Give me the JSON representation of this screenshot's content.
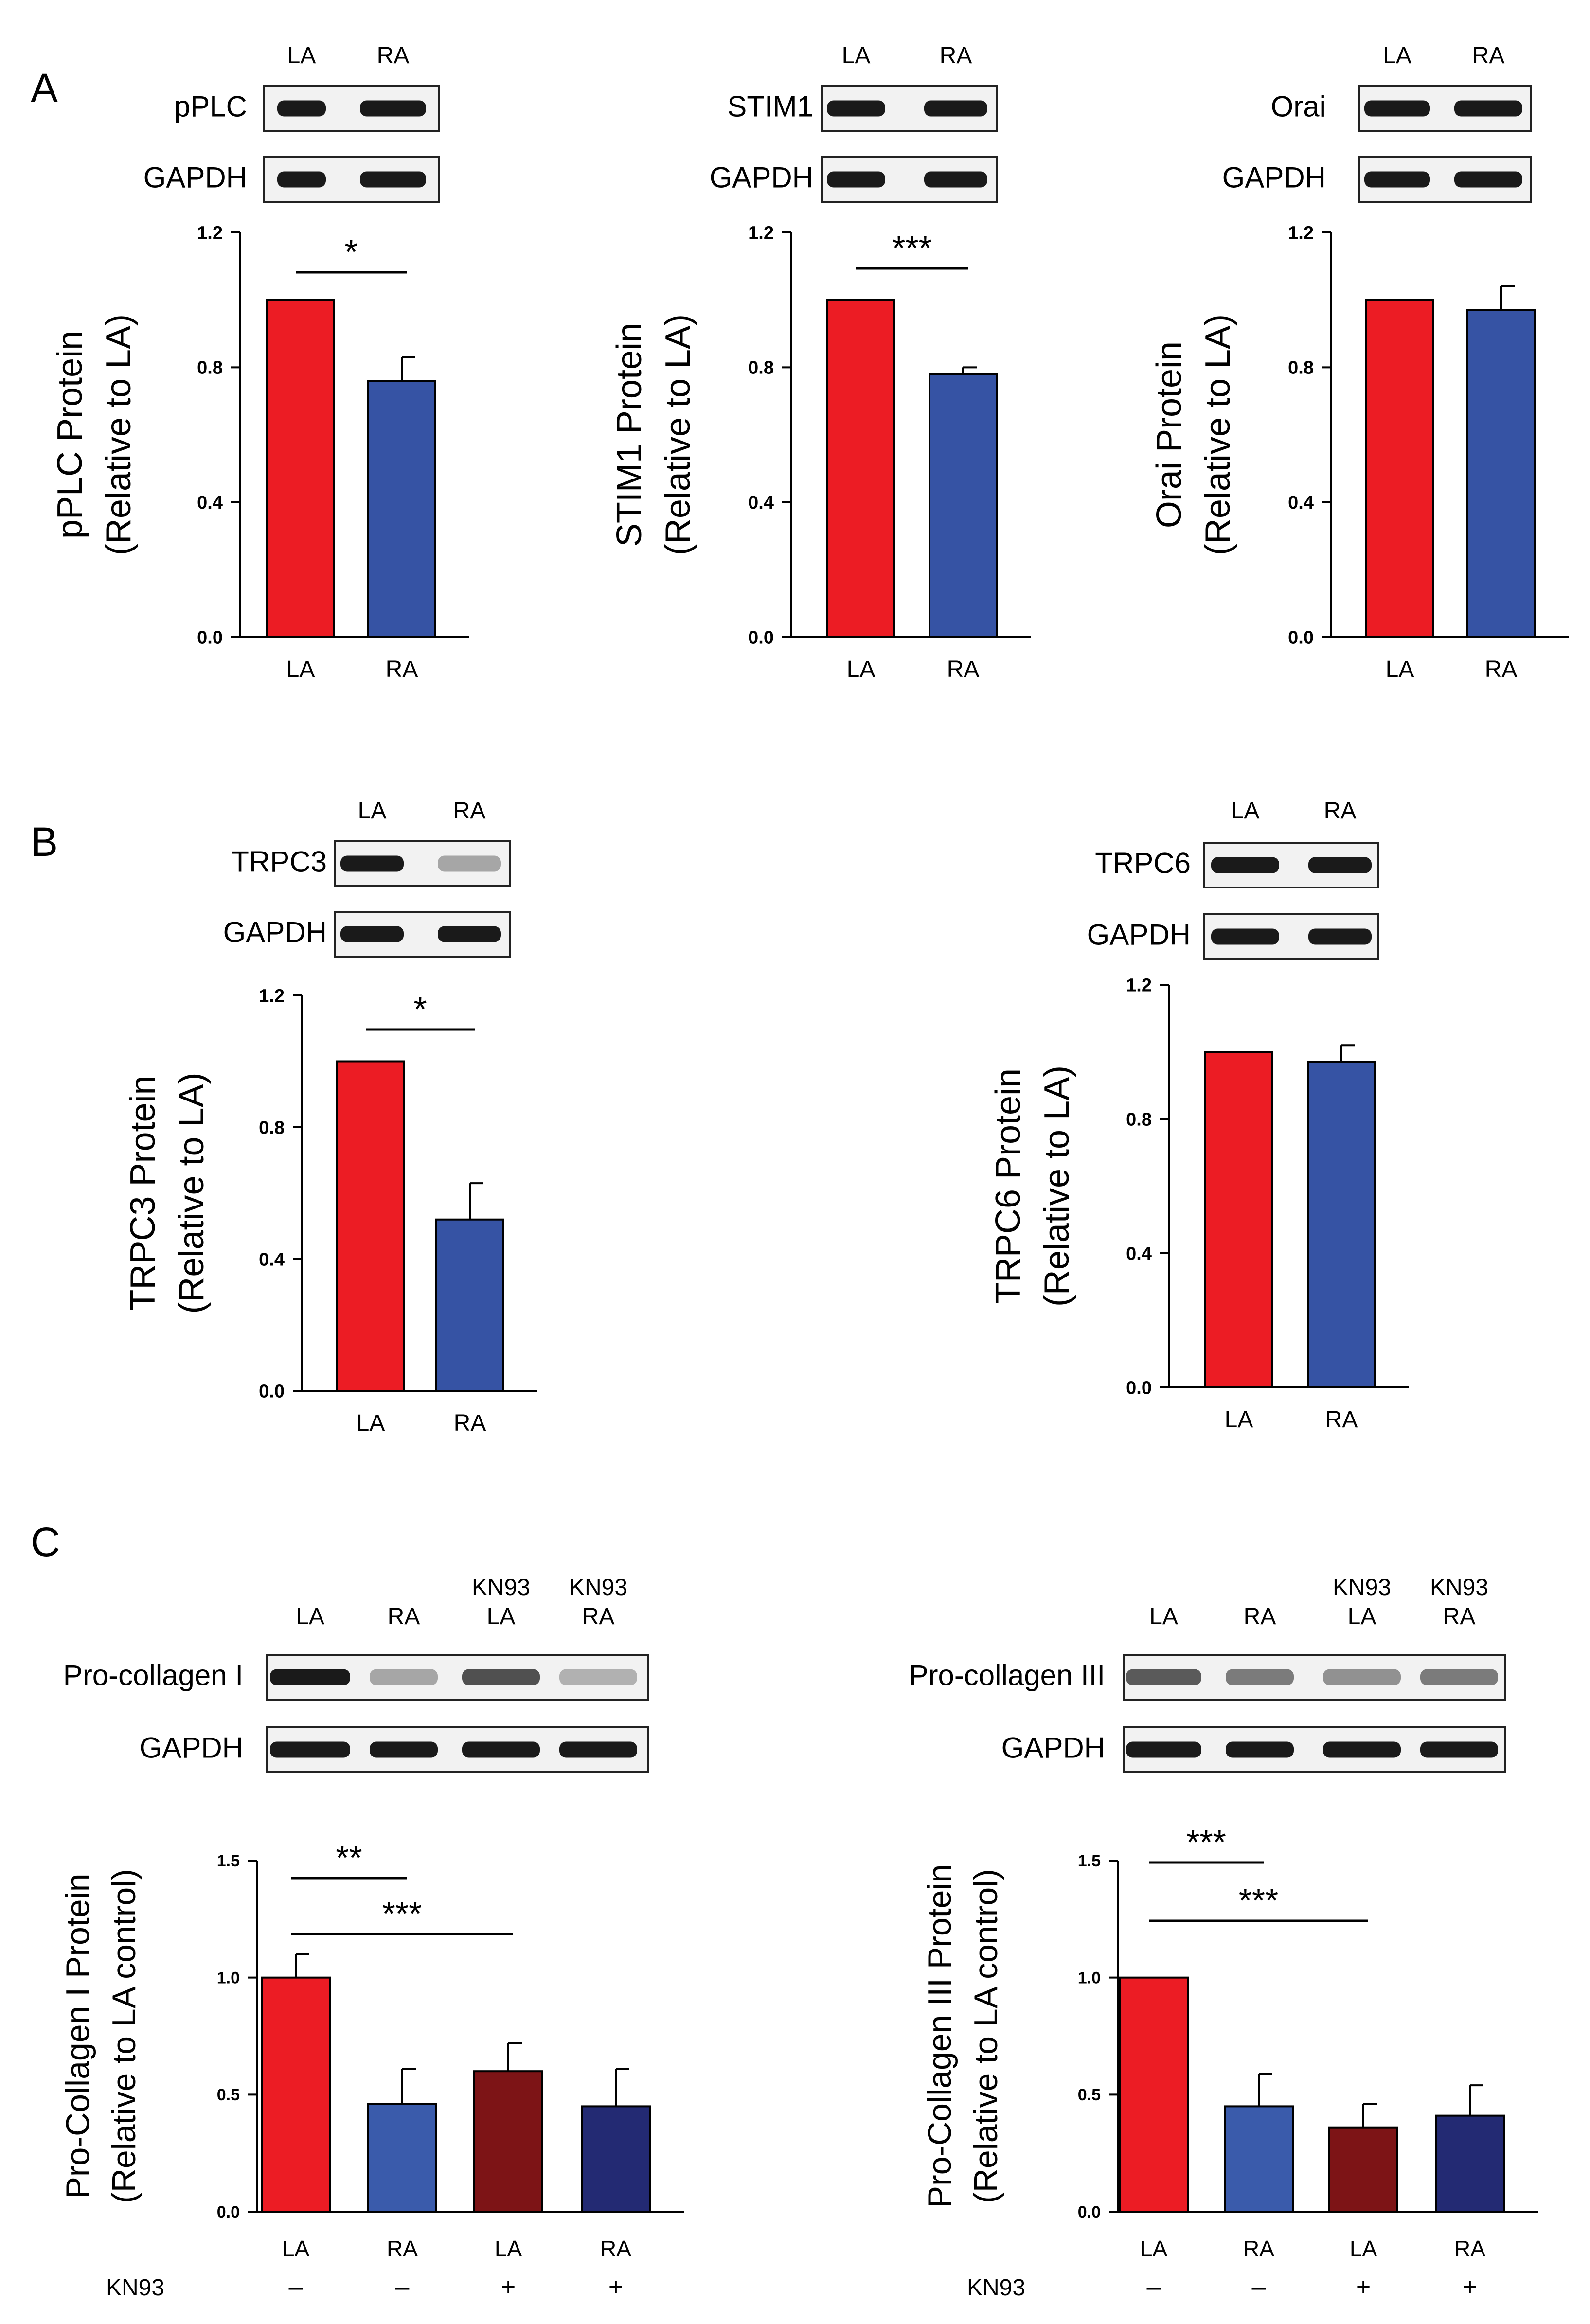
{
  "figure": {
    "panel_labels": [
      "A",
      "B",
      "C"
    ],
    "colors": {
      "red": "#ec1c24",
      "blue": "#3653a4",
      "dark_red": "#7d1416",
      "navy": "#232a73",
      "light_blue": "#3a5bab"
    }
  },
  "chart_data": [
    {
      "id": "pplc",
      "type": "bar",
      "panel": "A",
      "blot_labels": [
        "pPLC",
        "GAPDH"
      ],
      "lane_labels": [
        [
          "LA"
        ],
        [
          "RA"
        ]
      ],
      "categories": [
        "LA",
        "RA"
      ],
      "values": [
        1.0,
        0.76
      ],
      "errors": [
        0,
        0.07
      ],
      "colors": [
        "#ec1c24",
        "#3653a4"
      ],
      "ylabel": [
        "pPLC Protein",
        "(Relative to LA)"
      ],
      "ylim": [
        0,
        1.2
      ],
      "yticks": [
        "0.0",
        "0.4",
        "0.8",
        "1.2"
      ],
      "significance": [
        {
          "from": "LA",
          "to": "RA",
          "label": "*"
        }
      ]
    },
    {
      "id": "stim1",
      "type": "bar",
      "panel": "A",
      "blot_labels": [
        "STIM1",
        "GAPDH"
      ],
      "lane_labels": [
        [
          "LA"
        ],
        [
          "RA"
        ]
      ],
      "categories": [
        "LA",
        "RA"
      ],
      "values": [
        1.0,
        0.78
      ],
      "errors": [
        0,
        0.02
      ],
      "colors": [
        "#ec1c24",
        "#3653a4"
      ],
      "ylabel": [
        "STIM1 Protein",
        "(Relative to LA)"
      ],
      "ylim": [
        0,
        1.2
      ],
      "yticks": [
        "0.0",
        "0.4",
        "0.8",
        "1.2"
      ],
      "significance": [
        {
          "from": "LA",
          "to": "RA",
          "label": "***"
        }
      ]
    },
    {
      "id": "orai",
      "type": "bar",
      "panel": "A",
      "blot_labels": [
        "Orai",
        "GAPDH"
      ],
      "lane_labels": [
        [
          "LA"
        ],
        [
          "RA"
        ]
      ],
      "categories": [
        "LA",
        "RA"
      ],
      "values": [
        1.0,
        0.97
      ],
      "errors": [
        0,
        0.07
      ],
      "colors": [
        "#ec1c24",
        "#3653a4"
      ],
      "ylabel": [
        "Orai Protein",
        "(Relative to LA)"
      ],
      "ylim": [
        0,
        1.2
      ],
      "yticks": [
        "0.0",
        "0.4",
        "0.8",
        "1.2"
      ],
      "significance": []
    },
    {
      "id": "trpc3",
      "type": "bar",
      "panel": "B",
      "blot_labels": [
        "TRPC3",
        "GAPDH"
      ],
      "lane_labels": [
        [
          "LA"
        ],
        [
          "RA"
        ]
      ],
      "categories": [
        "LA",
        "RA"
      ],
      "values": [
        1.0,
        0.52
      ],
      "errors": [
        0,
        0.11
      ],
      "colors": [
        "#ec1c24",
        "#3653a4"
      ],
      "ylabel": [
        "TRPC3 Protein",
        "(Relative to LA)"
      ],
      "ylim": [
        0,
        1.2
      ],
      "yticks": [
        "0.0",
        "0.4",
        "0.8",
        "1.2"
      ],
      "significance": [
        {
          "from": "LA",
          "to": "RA",
          "label": "*"
        }
      ]
    },
    {
      "id": "trpc6",
      "type": "bar",
      "panel": "B",
      "blot_labels": [
        "TRPC6",
        "GAPDH"
      ],
      "lane_labels": [
        [
          "LA"
        ],
        [
          "RA"
        ]
      ],
      "categories": [
        "LA",
        "RA"
      ],
      "values": [
        1.0,
        0.97
      ],
      "errors": [
        0,
        0.05
      ],
      "colors": [
        "#ec1c24",
        "#3653a4"
      ],
      "ylabel": [
        "TRPC6 Protein",
        "(Relative to LA)"
      ],
      "ylim": [
        0,
        1.2
      ],
      "yticks": [
        "0.0",
        "0.4",
        "0.8",
        "1.2"
      ],
      "significance": []
    },
    {
      "id": "procol1",
      "type": "bar",
      "panel": "C",
      "blot_labels": [
        "Pro-collagen I",
        "GAPDH"
      ],
      "lane_labels": [
        [
          "LA"
        ],
        [
          "RA"
        ],
        [
          "KN93",
          "LA"
        ],
        [
          "KN93",
          "RA"
        ]
      ],
      "categories": [
        "LA",
        "RA",
        "LA",
        "RA"
      ],
      "values": [
        1.0,
        0.46,
        0.6,
        0.45
      ],
      "errors": [
        0.1,
        0.15,
        0.12,
        0.16
      ],
      "colors": [
        "#ec1c24",
        "#3a5bab",
        "#7d1416",
        "#232a73"
      ],
      "ylabel": [
        "Pro-Collagen I Protein",
        "(Relative to LA control)"
      ],
      "ylim": [
        0,
        1.5
      ],
      "yticks": [
        "0.0",
        "0.5",
        "1.0",
        "1.5"
      ],
      "treatment_label": "KN93",
      "treatment": [
        "–",
        "–",
        "+",
        "+"
      ],
      "significance": [
        {
          "from": 0,
          "to": 1,
          "label": "**"
        },
        {
          "from": 0,
          "to": 2,
          "label": "***"
        }
      ]
    },
    {
      "id": "procol3",
      "type": "bar",
      "panel": "C",
      "blot_labels": [
        "Pro-collagen III",
        "GAPDH"
      ],
      "lane_labels": [
        [
          "LA"
        ],
        [
          "RA"
        ],
        [
          "KN93",
          "LA"
        ],
        [
          "KN93",
          "RA"
        ]
      ],
      "categories": [
        "LA",
        "RA",
        "LA",
        "RA"
      ],
      "values": [
        1.0,
        0.45,
        0.36,
        0.41
      ],
      "errors": [
        0,
        0.14,
        0.1,
        0.13
      ],
      "colors": [
        "#ec1c24",
        "#3a5bab",
        "#7d1416",
        "#232a73"
      ],
      "ylabel": [
        "Pro-Collagen III Protein",
        "(Relative to LA control)"
      ],
      "ylim": [
        0,
        1.5
      ],
      "yticks": [
        "0.0",
        "0.5",
        "1.0",
        "1.5"
      ],
      "treatment_label": "KN93",
      "treatment": [
        "–",
        "–",
        "+",
        "+"
      ],
      "significance": [
        {
          "from": 0,
          "to": 1,
          "label": "***"
        },
        {
          "from": 0,
          "to": 2,
          "label": "***"
        }
      ]
    }
  ]
}
